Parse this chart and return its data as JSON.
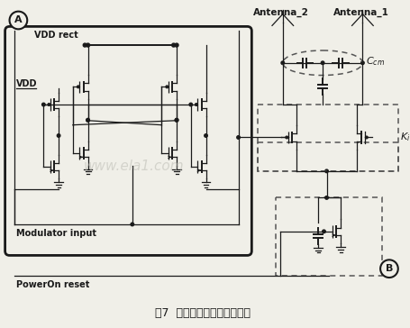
{
  "fig_width": 4.56,
  "fig_height": 3.64,
  "dpi": 100,
  "bg_color": "#f0efe8",
  "title_chinese": "图7  阻抗匹配及调制反射电路",
  "title_fontsize": 9,
  "label_A": "A",
  "label_B": "B",
  "label_antenna2": "Antenna_2",
  "label_antenna1": "Antenna_1",
  "label_Ki": "K",
  "label_Ki_sub": "i",
  "label_VDDrect": "VDD rect",
  "label_VDD": "VDD",
  "label_modulator": "Modulator input",
  "label_poweron": "PowerOn reset"
}
